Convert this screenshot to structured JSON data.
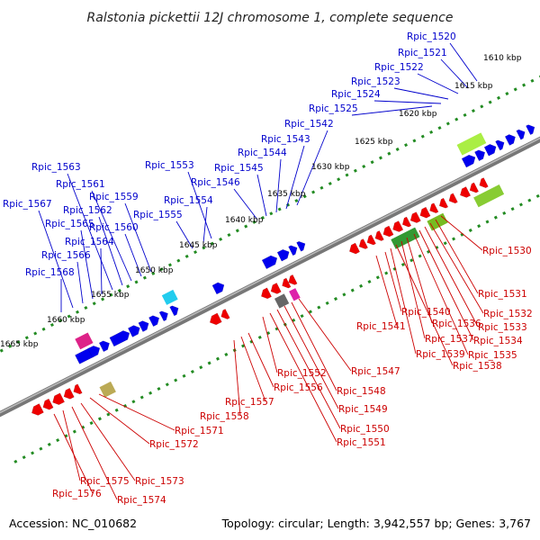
{
  "title": "Ralstonia pickettii 12J chromosome 1, complete sequence",
  "footer": {
    "accession": "Accession: NC_010682",
    "summary": "Topology: circular; Length: 3,942,557 bp; Genes: 3,767"
  },
  "colors": {
    "forward_gene": "#0000ee",
    "reverse_gene": "#ee0000",
    "backbone": "#888888",
    "tick": "#228b22",
    "label_blue": "#0000cc",
    "label_red": "#cc0000"
  },
  "kbp_ticks": [
    "1610 kbp",
    "1615 kbp",
    "1620 kbp",
    "1625 kbp",
    "1630 kbp",
    "1635 kbp",
    "1640 kbp",
    "1645 kbp",
    "1650 kbp",
    "1655 kbp",
    "1660 kbp",
    "1665 kbp"
  ],
  "forward_genes": [
    "Rpic_1520",
    "Rpic_1521",
    "Rpic_1522",
    "Rpic_1523",
    "Rpic_1524",
    "Rpic_1525",
    "Rpic_1542",
    "Rpic_1543",
    "Rpic_1544",
    "Rpic_1545",
    "Rpic_1546",
    "Rpic_1553",
    "Rpic_1554",
    "Rpic_1555",
    "Rpic_1559",
    "Rpic_1560",
    "Rpic_1561",
    "Rpic_1562",
    "Rpic_1563",
    "Rpic_1564",
    "Rpic_1565",
    "Rpic_1566",
    "Rpic_1567",
    "Rpic_1568"
  ],
  "reverse_genes": [
    "Rpic_1530",
    "Rpic_1531",
    "Rpic_1532",
    "Rpic_1533",
    "Rpic_1534",
    "Rpic_1535",
    "Rpic_1536",
    "Rpic_1537",
    "Rpic_1538",
    "Rpic_1539",
    "Rpic_1540",
    "Rpic_1541",
    "Rpic_1547",
    "Rpic_1548",
    "Rpic_1549",
    "Rpic_1550",
    "Rpic_1551",
    "Rpic_1552",
    "Rpic_1556",
    "Rpic_1557",
    "Rpic_1558",
    "Rpic_1571",
    "Rpic_1572",
    "Rpic_1573",
    "Rpic_1574",
    "Rpic_1575",
    "Rpic_1576"
  ]
}
